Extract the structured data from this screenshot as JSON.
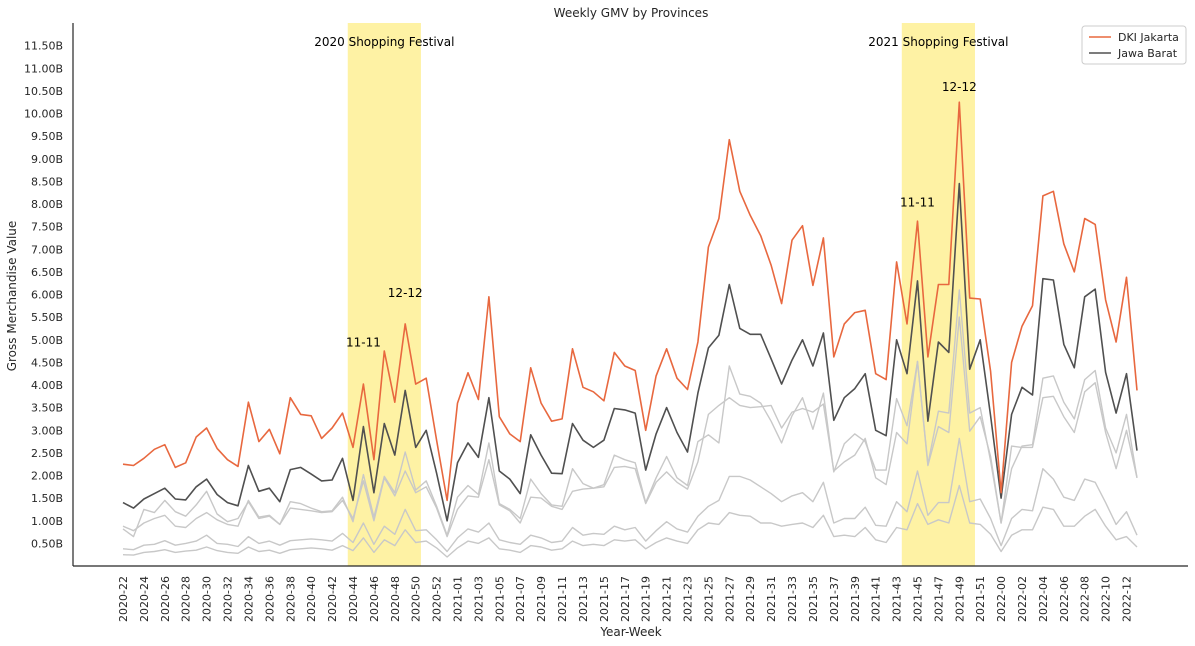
{
  "chart_data": {
    "type": "line",
    "title": "Weekly GMV by Provinces",
    "xlabel": "Year-Week",
    "ylabel": "Gross Merchandise Value",
    "ylim": [
      0,
      12.0
    ],
    "y_ticks": [
      "0.50B",
      "1.00B",
      "1.50B",
      "2.00B",
      "2.50B",
      "3.00B",
      "3.50B",
      "4.00B",
      "4.50B",
      "5.00B",
      "5.50B",
      "6.00B",
      "6.50B",
      "7.00B",
      "7.50B",
      "8.00B",
      "8.50B",
      "9.00B",
      "9.50B",
      "10.00B",
      "10.50B",
      "11.00B",
      "11.50B"
    ],
    "y_tick_values": [
      0.5,
      1.0,
      1.5,
      2.0,
      2.5,
      3.0,
      3.5,
      4.0,
      4.5,
      5.0,
      5.5,
      6.0,
      6.5,
      7.0,
      7.5,
      8.0,
      8.5,
      9.0,
      9.5,
      10.0,
      10.5,
      11.0,
      11.5
    ],
    "x_categories": [
      "2020-22",
      "2020-23",
      "2020-24",
      "2020-25",
      "2020-26",
      "2020-27",
      "2020-28",
      "2020-29",
      "2020-30",
      "2020-31",
      "2020-32",
      "2020-33",
      "2020-34",
      "2020-35",
      "2020-36",
      "2020-37",
      "2020-38",
      "2020-39",
      "2020-40",
      "2020-41",
      "2020-42",
      "2020-43",
      "2020-44",
      "2020-45",
      "2020-46",
      "2020-47",
      "2020-48",
      "2020-49",
      "2020-50",
      "2020-51",
      "2020-52",
      "2020-53",
      "2021-01",
      "2021-02",
      "2021-03",
      "2021-04",
      "2021-05",
      "2021-06",
      "2021-07",
      "2021-08",
      "2021-09",
      "2021-10",
      "2021-11",
      "2021-12",
      "2021-13",
      "2021-14",
      "2021-15",
      "2021-16",
      "2021-17",
      "2021-18",
      "2021-19",
      "2021-20",
      "2021-21",
      "2021-22",
      "2021-23",
      "2021-24",
      "2021-25",
      "2021-26",
      "2021-27",
      "2021-28",
      "2021-29",
      "2021-30",
      "2021-31",
      "2021-32",
      "2021-33",
      "2021-34",
      "2021-35",
      "2021-36",
      "2021-37",
      "2021-38",
      "2021-39",
      "2021-40",
      "2021-41",
      "2021-42",
      "2021-43",
      "2021-44",
      "2021-45",
      "2021-46",
      "2021-47",
      "2021-48",
      "2021-49",
      "2021-50",
      "2021-51",
      "2021-52",
      "2022-00",
      "2022-01",
      "2022-02",
      "2022-03",
      "2022-04",
      "2022-05",
      "2022-06",
      "2022-07",
      "2022-08",
      "2022-09",
      "2022-10",
      "2022-11",
      "2022-12",
      "2022-13"
    ],
    "x_tick_labels": [
      "2020-22",
      "2020-24",
      "2020-26",
      "2020-28",
      "2020-30",
      "2020-32",
      "2020-34",
      "2020-36",
      "2020-38",
      "2020-40",
      "2020-42",
      "2020-44",
      "2020-46",
      "2020-48",
      "2020-50",
      "2020-52",
      "2021-01",
      "2021-03",
      "2021-05",
      "2021-07",
      "2021-09",
      "2021-11",
      "2021-13",
      "2021-15",
      "2021-17",
      "2021-19",
      "2021-21",
      "2021-23",
      "2021-25",
      "2021-27",
      "2021-29",
      "2021-31",
      "2021-33",
      "2021-35",
      "2021-37",
      "2021-39",
      "2021-41",
      "2021-43",
      "2021-45",
      "2021-47",
      "2021-49",
      "2021-51",
      "2022-00",
      "2022-02",
      "2022-04",
      "2022-06",
      "2022-08",
      "2022-10",
      "2022-12"
    ],
    "legend": [
      "DKI Jakarta",
      "Jawa Barat"
    ],
    "legend_position": "upper right",
    "highlights": [
      {
        "label": "2020 Shopping Festival",
        "from": "2020-44",
        "to": "2020-50",
        "color": "#fef2a4"
      },
      {
        "label": "2021 Shopping Festival",
        "from": "2021-44",
        "to": "2021-50",
        "color": "#fef2a4"
      }
    ],
    "annotations": [
      {
        "text": "11-11",
        "x": "2020-45",
        "y": 4.85
      },
      {
        "text": "12-12",
        "x": "2020-49",
        "y": 5.95
      },
      {
        "text": "11-11",
        "x": "2021-45",
        "y": 7.95
      },
      {
        "text": "12-12",
        "x": "2021-49",
        "y": 10.5
      }
    ],
    "series": [
      {
        "name": "DKI Jakarta",
        "color": "#e8683f",
        "width": 1.6,
        "values": [
          2.25,
          2.22,
          2.38,
          2.58,
          2.68,
          2.18,
          2.28,
          2.85,
          3.05,
          2.6,
          2.35,
          2.2,
          3.62,
          2.75,
          3.02,
          2.48,
          3.72,
          3.35,
          3.32,
          2.82,
          3.05,
          3.38,
          2.62,
          4.02,
          2.35,
          4.75,
          3.62,
          5.35,
          4.02,
          4.15,
          2.78,
          1.45,
          3.6,
          4.27,
          3.68,
          5.95,
          3.3,
          2.92,
          2.75,
          4.38,
          3.6,
          3.2,
          3.25,
          4.8,
          3.95,
          3.85,
          3.65,
          4.72,
          4.42,
          4.32,
          3.0,
          4.2,
          4.8,
          4.15,
          3.9,
          4.95,
          7.05,
          7.68,
          9.42,
          8.28,
          7.75,
          7.3,
          6.65,
          5.8,
          7.2,
          7.52,
          6.2,
          7.25,
          4.62,
          5.35,
          5.6,
          5.65,
          4.25,
          4.12,
          6.72,
          5.35,
          7.62,
          4.62,
          6.22,
          6.22,
          10.25,
          5.92,
          5.9,
          4.3,
          1.62,
          4.5,
          5.3,
          5.75,
          8.18,
          8.28,
          7.12,
          6.5,
          7.68,
          7.55,
          5.88,
          4.95,
          6.38,
          3.88
        ]
      },
      {
        "name": "Jawa Barat",
        "color": "#505050",
        "width": 1.6,
        "values": [
          1.4,
          1.28,
          1.48,
          1.6,
          1.72,
          1.48,
          1.46,
          1.75,
          1.92,
          1.58,
          1.4,
          1.33,
          2.22,
          1.65,
          1.72,
          1.42,
          2.13,
          2.18,
          2.03,
          1.88,
          1.9,
          2.38,
          1.45,
          3.08,
          1.62,
          3.15,
          2.45,
          3.88,
          2.62,
          3.0,
          2.05,
          1.0,
          2.28,
          2.72,
          2.4,
          3.72,
          2.1,
          1.92,
          1.6,
          2.9,
          2.45,
          2.05,
          2.04,
          3.15,
          2.78,
          2.62,
          2.78,
          3.48,
          3.45,
          3.38,
          2.12,
          2.92,
          3.5,
          2.95,
          2.52,
          3.82,
          4.82,
          5.1,
          6.22,
          5.25,
          5.12,
          5.12,
          4.58,
          4.02,
          4.55,
          5.0,
          4.42,
          5.15,
          3.22,
          3.72,
          3.92,
          4.25,
          3.0,
          2.88,
          5.0,
          4.25,
          6.3,
          3.2,
          4.95,
          4.72,
          8.45,
          4.35,
          5.0,
          3.32,
          1.5,
          3.35,
          3.95,
          3.78,
          6.35,
          6.32,
          4.9,
          4.38,
          5.95,
          6.12,
          4.28,
          3.38,
          4.25,
          2.55
        ]
      },
      {
        "name": "",
        "color": "#c8c8c8",
        "width": 1.4,
        "values": [
          0.88,
          0.78,
          0.95,
          1.05,
          1.12,
          0.88,
          0.85,
          1.05,
          1.18,
          1.02,
          0.92,
          0.88,
          1.45,
          1.08,
          1.12,
          0.92,
          1.42,
          1.38,
          1.28,
          1.2,
          1.22,
          1.52,
          0.98,
          2.02,
          1.08,
          1.98,
          1.62,
          2.52,
          1.68,
          1.88,
          1.32,
          0.68,
          1.52,
          1.78,
          1.58,
          2.72,
          1.38,
          1.25,
          1.05,
          1.92,
          1.6,
          1.35,
          1.32,
          2.15,
          1.82,
          1.72,
          1.8,
          2.45,
          2.35,
          2.28,
          1.4,
          1.95,
          2.42,
          1.95,
          1.78,
          2.75,
          2.9,
          2.72,
          4.42,
          3.8,
          3.75,
          3.6,
          3.2,
          2.72,
          3.32,
          3.72,
          3.02,
          3.82,
          2.08,
          2.7,
          2.92,
          2.75,
          2.12,
          2.12,
          3.7,
          3.1,
          4.52,
          2.25,
          3.42,
          3.38,
          6.1,
          3.38,
          3.5,
          2.32,
          0.95,
          2.15,
          2.65,
          2.68,
          4.15,
          4.2,
          3.62,
          3.25,
          4.12,
          4.32,
          3.05,
          2.5,
          3.35,
          1.95
        ]
      },
      {
        "name": "",
        "color": "#c8c8c8",
        "width": 1.4,
        "values": [
          0.82,
          0.65,
          1.25,
          1.18,
          1.45,
          1.2,
          1.1,
          1.35,
          1.65,
          1.15,
          0.98,
          1.05,
          1.42,
          1.05,
          1.1,
          0.92,
          1.28,
          1.25,
          1.22,
          1.18,
          1.2,
          1.45,
          1.05,
          1.88,
          1.0,
          1.95,
          1.55,
          2.1,
          1.62,
          1.75,
          1.28,
          0.65,
          1.25,
          1.55,
          1.52,
          2.35,
          1.35,
          1.22,
          0.95,
          1.52,
          1.5,
          1.32,
          1.25,
          1.65,
          1.7,
          1.72,
          1.75,
          2.18,
          2.2,
          2.15,
          1.38,
          1.85,
          2.08,
          1.85,
          1.7,
          2.3,
          3.35,
          3.55,
          3.72,
          3.55,
          3.5,
          3.52,
          3.55,
          3.05,
          3.4,
          3.48,
          3.4,
          3.58,
          2.1,
          2.3,
          2.45,
          2.82,
          1.95,
          1.8,
          2.95,
          2.7,
          4.52,
          2.22,
          3.08,
          2.95,
          5.5,
          2.98,
          3.3,
          2.42,
          0.95,
          2.65,
          2.62,
          2.62,
          3.72,
          3.75,
          3.3,
          2.95,
          3.85,
          4.05,
          2.95,
          2.15,
          3.0,
          1.95
        ]
      },
      {
        "name": "",
        "color": "#c8c8c8",
        "width": 1.4,
        "values": [
          0.38,
          0.36,
          0.46,
          0.48,
          0.56,
          0.46,
          0.5,
          0.55,
          0.68,
          0.5,
          0.48,
          0.43,
          0.65,
          0.5,
          0.55,
          0.46,
          0.56,
          0.58,
          0.6,
          0.58,
          0.55,
          0.72,
          0.52,
          0.95,
          0.48,
          0.88,
          0.7,
          1.25,
          0.78,
          0.8,
          0.58,
          0.32,
          0.62,
          0.82,
          0.75,
          0.95,
          0.58,
          0.52,
          0.48,
          0.68,
          0.62,
          0.52,
          0.55,
          0.85,
          0.68,
          0.72,
          0.7,
          0.88,
          0.8,
          0.85,
          0.55,
          0.78,
          0.98,
          0.82,
          0.75,
          1.1,
          1.32,
          1.45,
          1.98,
          1.98,
          1.9,
          1.75,
          1.6,
          1.42,
          1.55,
          1.62,
          1.42,
          1.85,
          0.95,
          1.05,
          1.05,
          1.3,
          0.9,
          0.88,
          1.42,
          1.2,
          2.1,
          1.12,
          1.4,
          1.4,
          2.82,
          1.42,
          1.48,
          1.05,
          0.45,
          1.05,
          1.25,
          1.22,
          2.15,
          1.92,
          1.52,
          1.45,
          1.92,
          1.85,
          1.4,
          0.92,
          1.2,
          0.68
        ]
      },
      {
        "name": "",
        "color": "#c8c8c8",
        "width": 1.4,
        "values": [
          0.25,
          0.24,
          0.3,
          0.32,
          0.36,
          0.3,
          0.33,
          0.35,
          0.42,
          0.34,
          0.3,
          0.28,
          0.42,
          0.32,
          0.35,
          0.28,
          0.36,
          0.38,
          0.4,
          0.38,
          0.35,
          0.45,
          0.34,
          0.62,
          0.3,
          0.58,
          0.45,
          0.8,
          0.52,
          0.55,
          0.4,
          0.2,
          0.4,
          0.55,
          0.5,
          0.62,
          0.38,
          0.35,
          0.3,
          0.45,
          0.42,
          0.35,
          0.38,
          0.55,
          0.45,
          0.48,
          0.45,
          0.58,
          0.55,
          0.58,
          0.38,
          0.52,
          0.62,
          0.55,
          0.5,
          0.8,
          0.95,
          0.92,
          1.18,
          1.12,
          1.1,
          0.95,
          0.95,
          0.88,
          0.92,
          0.95,
          0.85,
          1.12,
          0.65,
          0.68,
          0.65,
          0.85,
          0.58,
          0.52,
          0.85,
          0.8,
          1.38,
          0.92,
          1.02,
          0.95,
          1.78,
          0.95,
          0.92,
          0.7,
          0.32,
          0.68,
          0.8,
          0.8,
          1.3,
          1.25,
          0.88,
          0.88,
          1.1,
          1.25,
          0.88,
          0.58,
          0.65,
          0.42
        ]
      }
    ]
  }
}
